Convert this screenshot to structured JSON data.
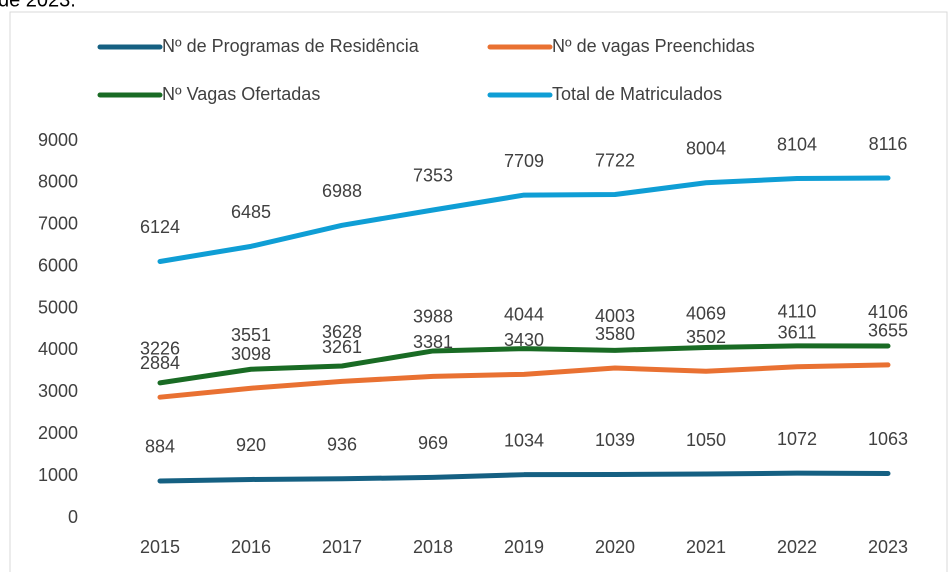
{
  "chart_data": {
    "type": "line",
    "title": "de 2023.",
    "categories": [
      "2015",
      "2016",
      "2017",
      "2018",
      "2019",
      "2020",
      "2021",
      "2022",
      "2023"
    ],
    "series": [
      {
        "name": "Nº de Programas de Residência",
        "color": "#156082",
        "values": [
          884,
          920,
          936,
          969,
          1034,
          1039,
          1050,
          1072,
          1063
        ]
      },
      {
        "name": "Nº de vagas Preenchidas",
        "color": "#E97132",
        "values": [
          2884,
          3098,
          3261,
          3381,
          3430,
          3580,
          3502,
          3611,
          3655
        ]
      },
      {
        "name": "Nº Vagas Ofertadas",
        "color": "#196B24",
        "values": [
          3226,
          3551,
          3628,
          3988,
          4044,
          4003,
          4069,
          4110,
          4106
        ]
      },
      {
        "name": "Total de Matriculados",
        "color": "#0F9ED5",
        "values": [
          6124,
          6485,
          6988,
          7353,
          7709,
          7722,
          8004,
          8104,
          8116
        ]
      }
    ],
    "ylim": [
      0,
      9000
    ],
    "yticks": [
      0,
      1000,
      2000,
      3000,
      4000,
      5000,
      6000,
      7000,
      8000,
      9000
    ],
    "grid": false,
    "legend": "top"
  }
}
